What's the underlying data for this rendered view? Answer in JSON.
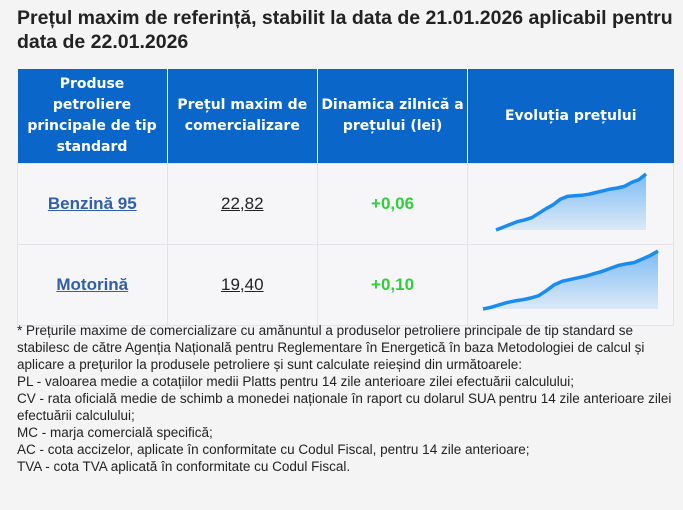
{
  "title": "Prețul maxim de referință, stabilit la data de 21.01.2026 aplicabil pentru data de 22.01.2026",
  "table": {
    "headers": [
      "Produse petroliere principale de tip standard",
      "Prețul maxim de comercializare",
      "Dinamica zilnică a prețului (lei)",
      "Evoluția prețului"
    ],
    "rows": [
      {
        "product": "Benzină 95",
        "price": "22,82",
        "dynamic": "+0,06",
        "trend": [
          0,
          0.05,
          0.1,
          0.15,
          0.18,
          0.22,
          0.3,
          0.38,
          0.45,
          0.55,
          0.6,
          0.61,
          0.62,
          0.64,
          0.67,
          0.7,
          0.73,
          0.75,
          0.78,
          0.85,
          0.9,
          1.0
        ]
      },
      {
        "product": "Motorină",
        "price": "19,40",
        "dynamic": "+0,10",
        "trend": [
          0,
          0.03,
          0.07,
          0.11,
          0.14,
          0.16,
          0.19,
          0.23,
          0.32,
          0.42,
          0.48,
          0.51,
          0.54,
          0.57,
          0.61,
          0.65,
          0.7,
          0.75,
          0.78,
          0.8,
          0.86,
          0.92,
          1.0
        ]
      }
    ]
  },
  "notes": [
    "* Prețurile maxime de comercializare cu amănuntul a produselor petroliere principale de tip standard se stabilesc de către Agenția Națională pentru Reglementare în Energetică în baza Metodologiei de calcul și aplicare a prețurilor la produsele petroliere și sunt calculate reieșind din următoarele:",
    "PL - valoarea medie a cotațiilor medii Platts pentru 14 zile anterioare zilei efectuării calculului;",
    "CV - rata oficială medie de schimb a monedei naționale în raport cu dolarul SUA pentru 14 zile anterioare zilei efectuării calculului;",
    "MC - marja comercială specifică;",
    "AC - cota accizelor, aplicate în conformitate cu Codul Fiscal, pentru 14 zile anterioare;",
    "TVA - cota TVA aplicată în conformitate cu Codul Fiscal."
  ],
  "colors": {
    "header": "#0a67c9",
    "line": "#1a8cf0",
    "positive": "#2fcf3a",
    "link": "#2f5fa8"
  }
}
